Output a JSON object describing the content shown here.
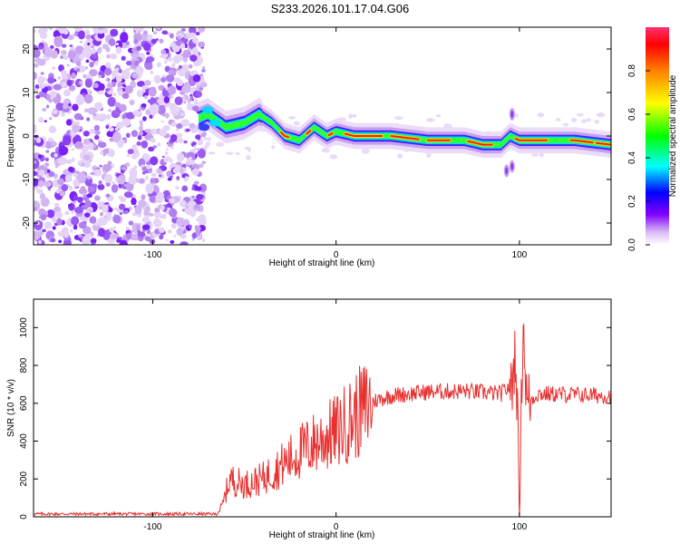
{
  "title": "S233.2026.101.17.04.G06",
  "chart_data": [
    {
      "type": "heatmap",
      "xlabel": "Height of straight line (km)",
      "ylabel": "Frequency (Hz)",
      "xlim": [
        -165,
        150
      ],
      "ylim": [
        -25,
        25
      ],
      "xticks": [
        -100,
        0,
        100
      ],
      "yticks": [
        -20,
        -10,
        0,
        10,
        20
      ],
      "colorbar": {
        "label": "Normalized spectral amplitude",
        "range": [
          0.0,
          1.0
        ],
        "ticks": [
          "0.0",
          "0.2",
          "0.4",
          "0.6",
          "0.8"
        ],
        "colors": [
          "#ffffff",
          "#c8a0f0",
          "#8000ff",
          "#0000ff",
          "#00ffff",
          "#00ff00",
          "#ffff00",
          "#ff8000",
          "#ff0000"
        ]
      },
      "ridge": {
        "x": [
          -75,
          -70,
          -60,
          -50,
          -42,
          -35,
          -28,
          -20,
          -12,
          -5,
          0,
          10,
          30,
          50,
          70,
          80,
          90,
          95,
          100,
          110,
          130,
          150
        ],
        "y": [
          4,
          5,
          2,
          3,
          5,
          3,
          0,
          -1,
          2,
          0,
          1,
          0,
          0,
          -1,
          -1,
          -2,
          -2,
          0,
          -1,
          -1,
          -1,
          -2
        ]
      },
      "noise_region_x": [
        -165,
        -72
      ]
    },
    {
      "type": "line",
      "xlabel": "Height of straight line (km)",
      "ylabel": "SNR (10 * v/v)",
      "xlim": [
        -165,
        150
      ],
      "ylim": [
        0,
        1150
      ],
      "xticks": [
        -100,
        0,
        100
      ],
      "yticks": [
        0,
        200,
        400,
        600,
        800,
        1000
      ],
      "color": "#e83030",
      "envelope": {
        "x": [
          -165,
          -65,
          -62,
          -58,
          -50,
          -40,
          -30,
          -20,
          -10,
          0,
          10,
          20,
          30,
          50,
          70,
          90,
          96,
          98,
          100,
          102,
          104,
          110,
          150
        ],
        "y": [
          15,
          15,
          60,
          200,
          170,
          200,
          270,
          340,
          400,
          450,
          530,
          610,
          640,
          660,
          665,
          650,
          700,
          900,
          80,
          1050,
          600,
          650,
          640
        ]
      }
    }
  ]
}
